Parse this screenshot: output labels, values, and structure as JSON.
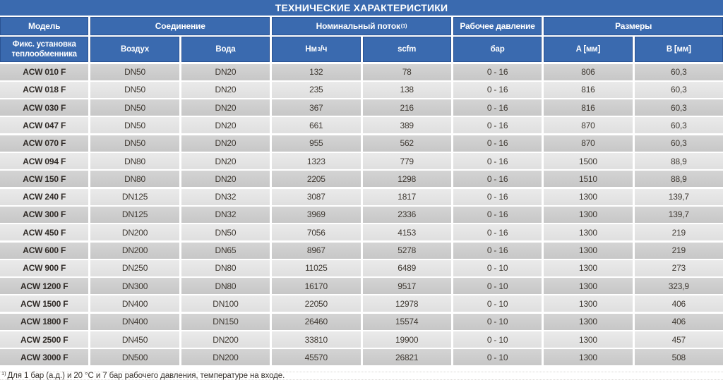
{
  "title": "ТЕХНИЧЕСКИЕ ХАРАКТЕРИСТИКИ",
  "colors": {
    "header_blue": "#3a6aaf",
    "header_border": "#2a5292",
    "row_dark": "#cbcbcb",
    "row_light": "#e4e4e4",
    "text": "#3e3831"
  },
  "table": {
    "group_header": [
      {
        "label": "Модель",
        "sup": "",
        "span": 1
      },
      {
        "label": "Соединение",
        "sup": "",
        "span": 2
      },
      {
        "label": "Номинальный поток",
        "sup": "(1)",
        "span": 2
      },
      {
        "label": "Рабочее давление",
        "sup": "",
        "span": 1
      },
      {
        "label": "Размеры",
        "sup": "",
        "span": 2
      }
    ],
    "column_header": [
      {
        "lines": [
          "Фикс. установка",
          "теплообменника"
        ]
      },
      {
        "lines": [
          "Воздух"
        ]
      },
      {
        "lines": [
          "Вода"
        ]
      },
      {
        "pre": "Нм",
        "sup": "3",
        "post": "/ч"
      },
      {
        "lines": [
          "scfm"
        ]
      },
      {
        "lines": [
          "бар"
        ]
      },
      {
        "lines": [
          "A [мм]"
        ]
      },
      {
        "lines": [
          "B [мм]"
        ]
      }
    ],
    "rows": [
      [
        "ACW 010 F",
        "DN50",
        "DN20",
        "132",
        "78",
        "0 - 16",
        "806",
        "60,3"
      ],
      [
        "ACW 018 F",
        "DN50",
        "DN20",
        "235",
        "138",
        "0 - 16",
        "816",
        "60,3"
      ],
      [
        "ACW 030 F",
        "DN50",
        "DN20",
        "367",
        "216",
        "0 - 16",
        "816",
        "60,3"
      ],
      [
        "ACW 047 F",
        "DN50",
        "DN20",
        "661",
        "389",
        "0 - 16",
        "870",
        "60,3"
      ],
      [
        "ACW 070 F",
        "DN50",
        "DN20",
        "955",
        "562",
        "0 - 16",
        "870",
        "60,3"
      ],
      [
        "ACW 094 F",
        "DN80",
        "DN20",
        "1323",
        "779",
        "0 - 16",
        "1500",
        "88,9"
      ],
      [
        "ACW 150 F",
        "DN80",
        "DN20",
        "2205",
        "1298",
        "0 - 16",
        "1510",
        "88,9"
      ],
      [
        "ACW 240 F",
        "DN125",
        "DN32",
        "3087",
        "1817",
        "0 - 16",
        "1300",
        "139,7"
      ],
      [
        "ACW 300 F",
        "DN125",
        "DN32",
        "3969",
        "2336",
        "0 - 16",
        "1300",
        "139,7"
      ],
      [
        "ACW 450 F",
        "DN200",
        "DN50",
        "7056",
        "4153",
        "0 - 16",
        "1300",
        "219"
      ],
      [
        "ACW 600 F",
        "DN200",
        "DN65",
        "8967",
        "5278",
        "0 - 16",
        "1300",
        "219"
      ],
      [
        "ACW 900 F",
        "DN250",
        "DN80",
        "11025",
        "6489",
        "0 - 10",
        "1300",
        "273"
      ],
      [
        "ACW 1200 F",
        "DN300",
        "DN80",
        "16170",
        "9517",
        "0 - 10",
        "1300",
        "323,9"
      ],
      [
        "ACW 1500 F",
        "DN400",
        "DN100",
        "22050",
        "12978",
        "0 - 10",
        "1300",
        "406"
      ],
      [
        "ACW 1800 F",
        "DN400",
        "DN150",
        "26460",
        "15574",
        "0 - 10",
        "1300",
        "406"
      ],
      [
        "ACW 2500 F",
        "DN450",
        "DN200",
        "33810",
        "19900",
        "0 - 10",
        "1300",
        "457"
      ],
      [
        "ACW 3000 F",
        "DN500",
        "DN200",
        "45570",
        "26821",
        "0 - 10",
        "1300",
        "508"
      ]
    ]
  },
  "footnote": {
    "sup": "1)",
    "text": "Для 1 бар (а.д.) и 20 °C и 7 бар рабочего давления, температуре на входе."
  }
}
